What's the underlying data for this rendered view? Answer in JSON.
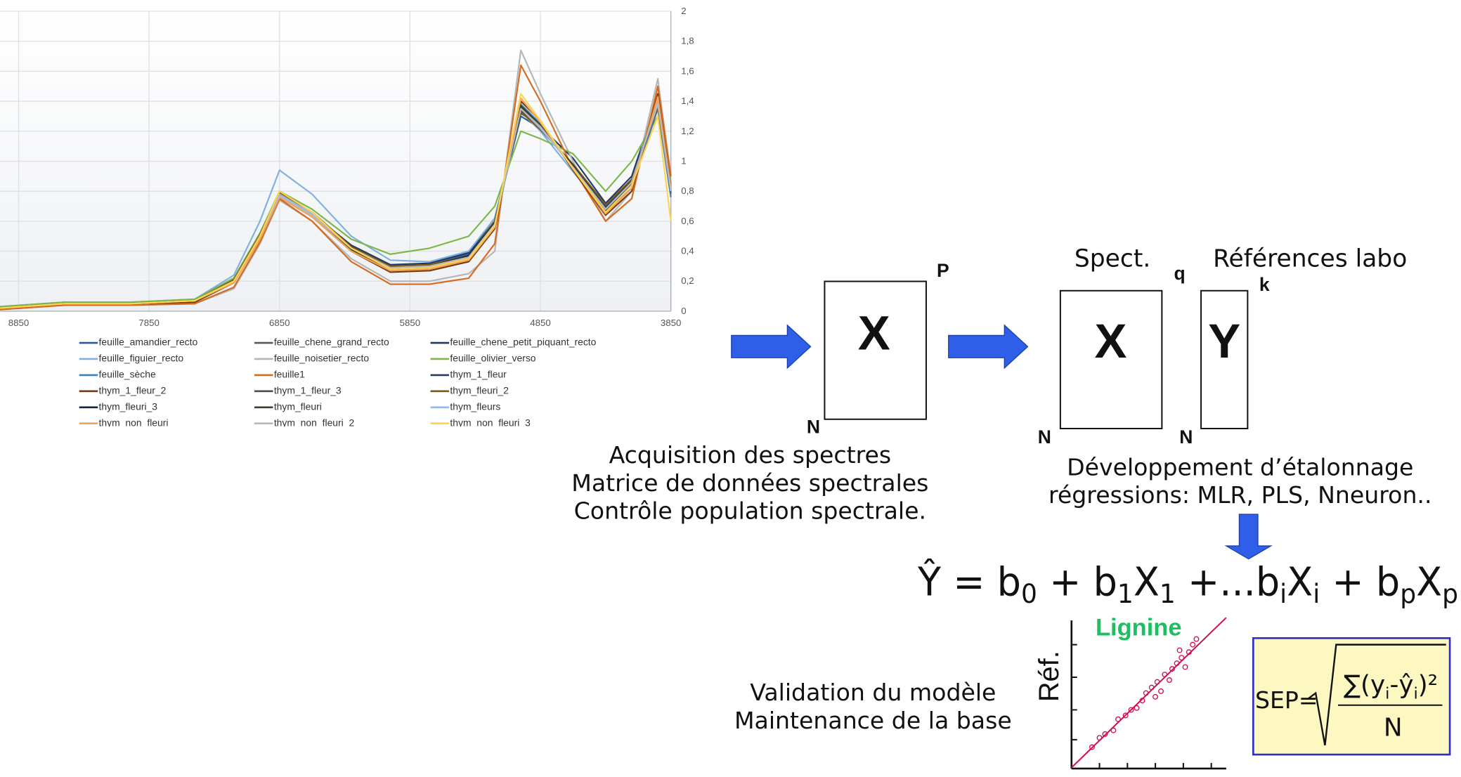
{
  "chart_data": {
    "type": "line",
    "x": [
      9000,
      8500,
      8000,
      7500,
      7200,
      7000,
      6850,
      6600,
      6300,
      6000,
      5700,
      5400,
      5200,
      5000,
      4850,
      4600,
      4350,
      4150,
      3950,
      3850
    ],
    "xlim": [
      9000,
      3850
    ],
    "xticks": [
      8850,
      7850,
      6850,
      5850,
      4850,
      3850
    ],
    "ylim": [
      0,
      2
    ],
    "yticks": [
      0,
      {
        "value": 0.2,
        "label": "0,2"
      },
      {
        "value": 0.4,
        "label": "0,4"
      },
      {
        "value": 0.6,
        "label": "0,6"
      },
      {
        "value": 0.8,
        "label": "0,8"
      },
      1,
      {
        "value": 1.2,
        "label": "1,2"
      },
      {
        "value": 1.4,
        "label": "1,4"
      },
      {
        "value": 1.6,
        "label": "1,6"
      },
      {
        "value": 1.8,
        "label": "1,8"
      },
      2
    ],
    "grid": true,
    "series": [
      {
        "name": "feuille_amandier_recto",
        "color": "#2e5a9c",
        "values": [
          0.02,
          0.06,
          0.05,
          0.08,
          0.22,
          0.52,
          0.79,
          0.66,
          0.43,
          0.3,
          0.31,
          0.38,
          0.6,
          1.3,
          1.22,
          0.98,
          0.7,
          0.88,
          1.38,
          0.8
        ]
      },
      {
        "name": "feuille_chene_grand_recto",
        "color": "#5a5a5a",
        "values": [
          0.02,
          0.05,
          0.05,
          0.07,
          0.2,
          0.5,
          0.77,
          0.64,
          0.42,
          0.29,
          0.3,
          0.36,
          0.58,
          1.36,
          1.24,
          0.95,
          0.68,
          0.85,
          1.4,
          0.78
        ]
      },
      {
        "name": "feuille_chene_petit_piquant_recto",
        "color": "#1f3864",
        "values": [
          0.02,
          0.05,
          0.05,
          0.07,
          0.21,
          0.51,
          0.78,
          0.65,
          0.44,
          0.31,
          0.32,
          0.39,
          0.62,
          1.32,
          1.23,
          1.02,
          0.72,
          0.9,
          1.42,
          0.82
        ]
      },
      {
        "name": "feuille_figuier_recto",
        "color": "#7eb0e0",
        "values": [
          0.03,
          0.06,
          0.06,
          0.08,
          0.24,
          0.6,
          0.94,
          0.78,
          0.5,
          0.34,
          0.33,
          0.4,
          0.62,
          1.33,
          1.2,
          0.93,
          0.67,
          0.84,
          1.45,
          0.85
        ]
      },
      {
        "name": "feuille_noisetier_recto",
        "color": "#b5b5b5",
        "values": [
          0.01,
          0.04,
          0.04,
          0.05,
          0.15,
          0.45,
          0.74,
          0.6,
          0.35,
          0.2,
          0.2,
          0.25,
          0.4,
          1.74,
          1.45,
          1.0,
          0.6,
          0.8,
          1.55,
          0.9
        ]
      },
      {
        "name": "feuille_olivier_verso",
        "color": "#7ab648",
        "values": [
          0.03,
          0.06,
          0.06,
          0.08,
          0.22,
          0.52,
          0.8,
          0.68,
          0.48,
          0.38,
          0.42,
          0.5,
          0.7,
          1.2,
          1.15,
          1.05,
          0.8,
          1.0,
          1.3,
          0.85
        ]
      },
      {
        "name": "feuille_sèche",
        "color": "#3b82b8",
        "values": [
          0.02,
          0.05,
          0.05,
          0.07,
          0.19,
          0.48,
          0.76,
          0.63,
          0.4,
          0.27,
          0.27,
          0.33,
          0.55,
          1.38,
          1.25,
          0.96,
          0.66,
          0.82,
          1.35,
          0.76
        ]
      },
      {
        "name": "feuille1",
        "color": "#d46a1e",
        "values": [
          0.01,
          0.04,
          0.04,
          0.05,
          0.16,
          0.46,
          0.75,
          0.6,
          0.33,
          0.18,
          0.18,
          0.22,
          0.45,
          1.64,
          1.4,
          0.95,
          0.6,
          0.75,
          1.5,
          0.9
        ]
      },
      {
        "name": "thym_1_fleur",
        "color": "#2a3b58",
        "values": [
          0.02,
          0.05,
          0.05,
          0.07,
          0.2,
          0.5,
          0.78,
          0.66,
          0.43,
          0.3,
          0.3,
          0.37,
          0.6,
          1.34,
          1.22,
          0.97,
          0.69,
          0.87,
          1.4,
          0.8
        ]
      },
      {
        "name": "thym_1_fleur_2",
        "color": "#7a3a0a",
        "values": [
          0.02,
          0.05,
          0.05,
          0.06,
          0.19,
          0.49,
          0.77,
          0.63,
          0.4,
          0.26,
          0.27,
          0.33,
          0.55,
          1.4,
          1.27,
          0.94,
          0.64,
          0.8,
          1.45,
          0.83
        ]
      },
      {
        "name": "thym_1_fleur_3",
        "color": "#4d4d4d",
        "values": [
          0.02,
          0.05,
          0.05,
          0.07,
          0.2,
          0.5,
          0.78,
          0.64,
          0.41,
          0.28,
          0.29,
          0.36,
          0.58,
          1.36,
          1.23,
          0.96,
          0.68,
          0.86,
          1.37,
          0.79
        ]
      },
      {
        "name": "thym_fleuri_2",
        "color": "#7d5a12",
        "values": [
          0.02,
          0.05,
          0.05,
          0.07,
          0.21,
          0.51,
          0.79,
          0.66,
          0.43,
          0.3,
          0.31,
          0.37,
          0.6,
          1.33,
          1.21,
          0.98,
          0.71,
          0.88,
          1.36,
          0.8
        ]
      },
      {
        "name": "thym_fleuri_3",
        "color": "#16243d",
        "values": [
          0.02,
          0.05,
          0.05,
          0.07,
          0.2,
          0.5,
          0.77,
          0.64,
          0.42,
          0.29,
          0.3,
          0.37,
          0.59,
          1.35,
          1.23,
          0.97,
          0.68,
          0.86,
          1.39,
          0.8
        ]
      },
      {
        "name": "thym_fleuri",
        "color": "#34432a",
        "values": [
          0.02,
          0.05,
          0.05,
          0.07,
          0.2,
          0.49,
          0.76,
          0.63,
          0.41,
          0.28,
          0.29,
          0.35,
          0.57,
          1.37,
          1.24,
          0.96,
          0.67,
          0.85,
          1.41,
          0.81
        ]
      },
      {
        "name": "thym_fleurs",
        "color": "#93b9ec",
        "values": [
          0.02,
          0.05,
          0.05,
          0.07,
          0.2,
          0.5,
          0.78,
          0.65,
          0.42,
          0.29,
          0.3,
          0.36,
          0.58,
          1.35,
          1.22,
          0.96,
          0.68,
          0.86,
          1.4,
          0.8
        ]
      },
      {
        "name": "thym_non_fleuri",
        "color": "#f5a35c",
        "values": [
          0.02,
          0.05,
          0.05,
          0.07,
          0.19,
          0.48,
          0.76,
          0.63,
          0.4,
          0.27,
          0.28,
          0.34,
          0.56,
          1.42,
          1.26,
          0.95,
          0.65,
          0.82,
          1.43,
          0.82
        ]
      },
      {
        "name": "thym_non_fleuri_2",
        "color": "#b9b9b9",
        "values": [
          0.02,
          0.05,
          0.05,
          0.07,
          0.2,
          0.5,
          0.77,
          0.64,
          0.42,
          0.29,
          0.3,
          0.36,
          0.58,
          1.35,
          1.23,
          0.96,
          0.68,
          0.86,
          1.38,
          0.8
        ]
      },
      {
        "name": "thym_non_fleuri_3",
        "color": "#ffd34e",
        "values": [
          0.02,
          0.05,
          0.05,
          0.07,
          0.2,
          0.5,
          0.8,
          0.66,
          0.42,
          0.28,
          0.29,
          0.35,
          0.57,
          1.45,
          1.27,
          0.95,
          0.66,
          0.84,
          1.3,
          0.6
        ]
      }
    ]
  },
  "diagram": {
    "box1": {
      "letter": "X",
      "cols": "P",
      "rows": "N"
    },
    "spect": "Spect.",
    "references": "Références labo",
    "box2": {
      "letter": "X",
      "cols": "q",
      "rows": "N"
    },
    "box3": {
      "letter": "Y",
      "cols": "k",
      "rows": "N"
    },
    "acquisition": [
      "Acquisition des spectres",
      "Matrice de données spectrales",
      "Contrôle  population  spectrale."
    ],
    "developpement": [
      "Développement d’étalonnage",
      "régressions: MLR, PLS, Nneuron.."
    ],
    "formula": [
      "Ŷ = b",
      "0",
      " + b",
      "1",
      "X",
      "1",
      " +...b",
      "i",
      "X",
      "i",
      " + b",
      "p",
      "X",
      "p"
    ],
    "lignine": "Lignine",
    "ref": "Réf.",
    "validation": [
      "Validation du modèle",
      "Maintenance de la base"
    ],
    "sep": {
      "label": "SEP=",
      "numerator": [
        "∑(y",
        "i",
        "-ŷ",
        "i",
        ")²"
      ],
      "denominator": "N"
    }
  }
}
